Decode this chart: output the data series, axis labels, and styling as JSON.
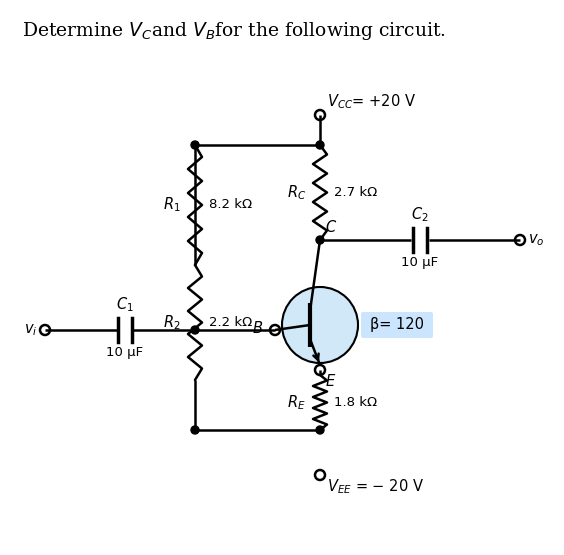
{
  "title_pre": "Determine ",
  "title_vc": "$V_C$",
  "title_mid": "and ",
  "title_vb": "$V_B$",
  "title_post": "for the following circuit.",
  "vcc_label": "$V_{CC}$= +20 V",
  "vee_label": "$V_{EE}$ = − 20 V",
  "rc_label": "$R_C$",
  "rc_value": "2.7 kΩ",
  "r1_label": "$R_1$",
  "r1_value": "8.2 kΩ",
  "r2_label": "$R_2$",
  "r2_value": "2.2 kΩ",
  "re_label": "$R_E$",
  "re_value": "1.8 kΩ",
  "c1_label": "$C_1$",
  "c1_value": "10 μF",
  "c2_label": "$C_2$",
  "c2_value": "10 μF",
  "beta_label": "β= 120",
  "node_b": "$B$",
  "node_c": "$C$",
  "node_e": "$E$",
  "vi_label": "$v_i$",
  "vo_label": "$v_o$",
  "bg_color": "#ffffff",
  "transistor_circle_color": "#d0e8f8",
  "beta_box_color": "#cce5ff",
  "line_color": "#000000",
  "text_color": "#000000",
  "fig_w": 5.64,
  "fig_h": 5.55,
  "dpi": 100
}
